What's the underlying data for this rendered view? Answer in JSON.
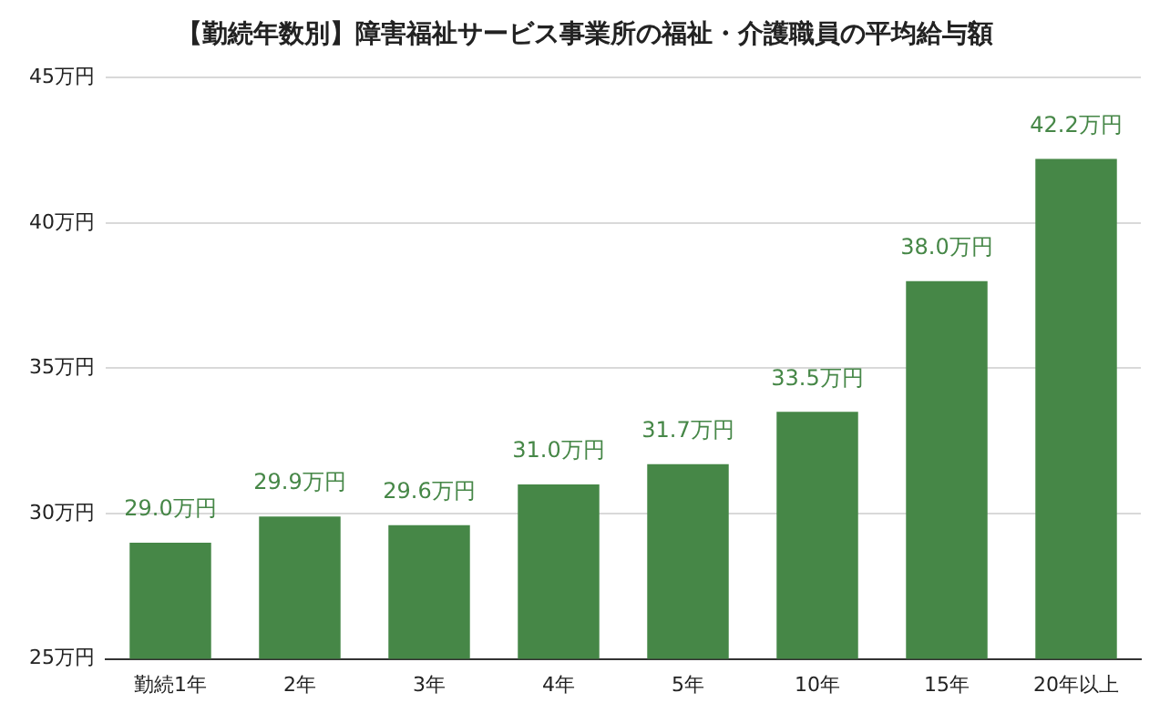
{
  "chart_data": {
    "type": "bar",
    "title": "【勤続年数別】障害福祉サービス事業所の福祉・介護職員の平均給与額",
    "categories": [
      "勤続1年",
      "2年",
      "3年",
      "4年",
      "5年",
      "10年",
      "15年",
      "20年以上"
    ],
    "values": [
      29.0,
      29.9,
      29.6,
      31.0,
      31.7,
      33.5,
      38.0,
      42.2
    ],
    "value_labels": [
      "29.0万円",
      "29.9万円",
      "29.6万円",
      "31.0万円",
      "31.7万円",
      "33.5万円",
      "38.0万円",
      "42.2万円"
    ],
    "color": "#468747",
    "ylim": [
      25,
      45
    ],
    "yticks": [
      {
        "value": 25,
        "label": "25万円"
      },
      {
        "value": 30,
        "label": "30万円"
      },
      {
        "value": 35,
        "label": "35万円"
      },
      {
        "value": 40,
        "label": "40万円"
      },
      {
        "value": 45,
        "label": "45万円"
      }
    ],
    "grid": "y",
    "legend": false
  }
}
